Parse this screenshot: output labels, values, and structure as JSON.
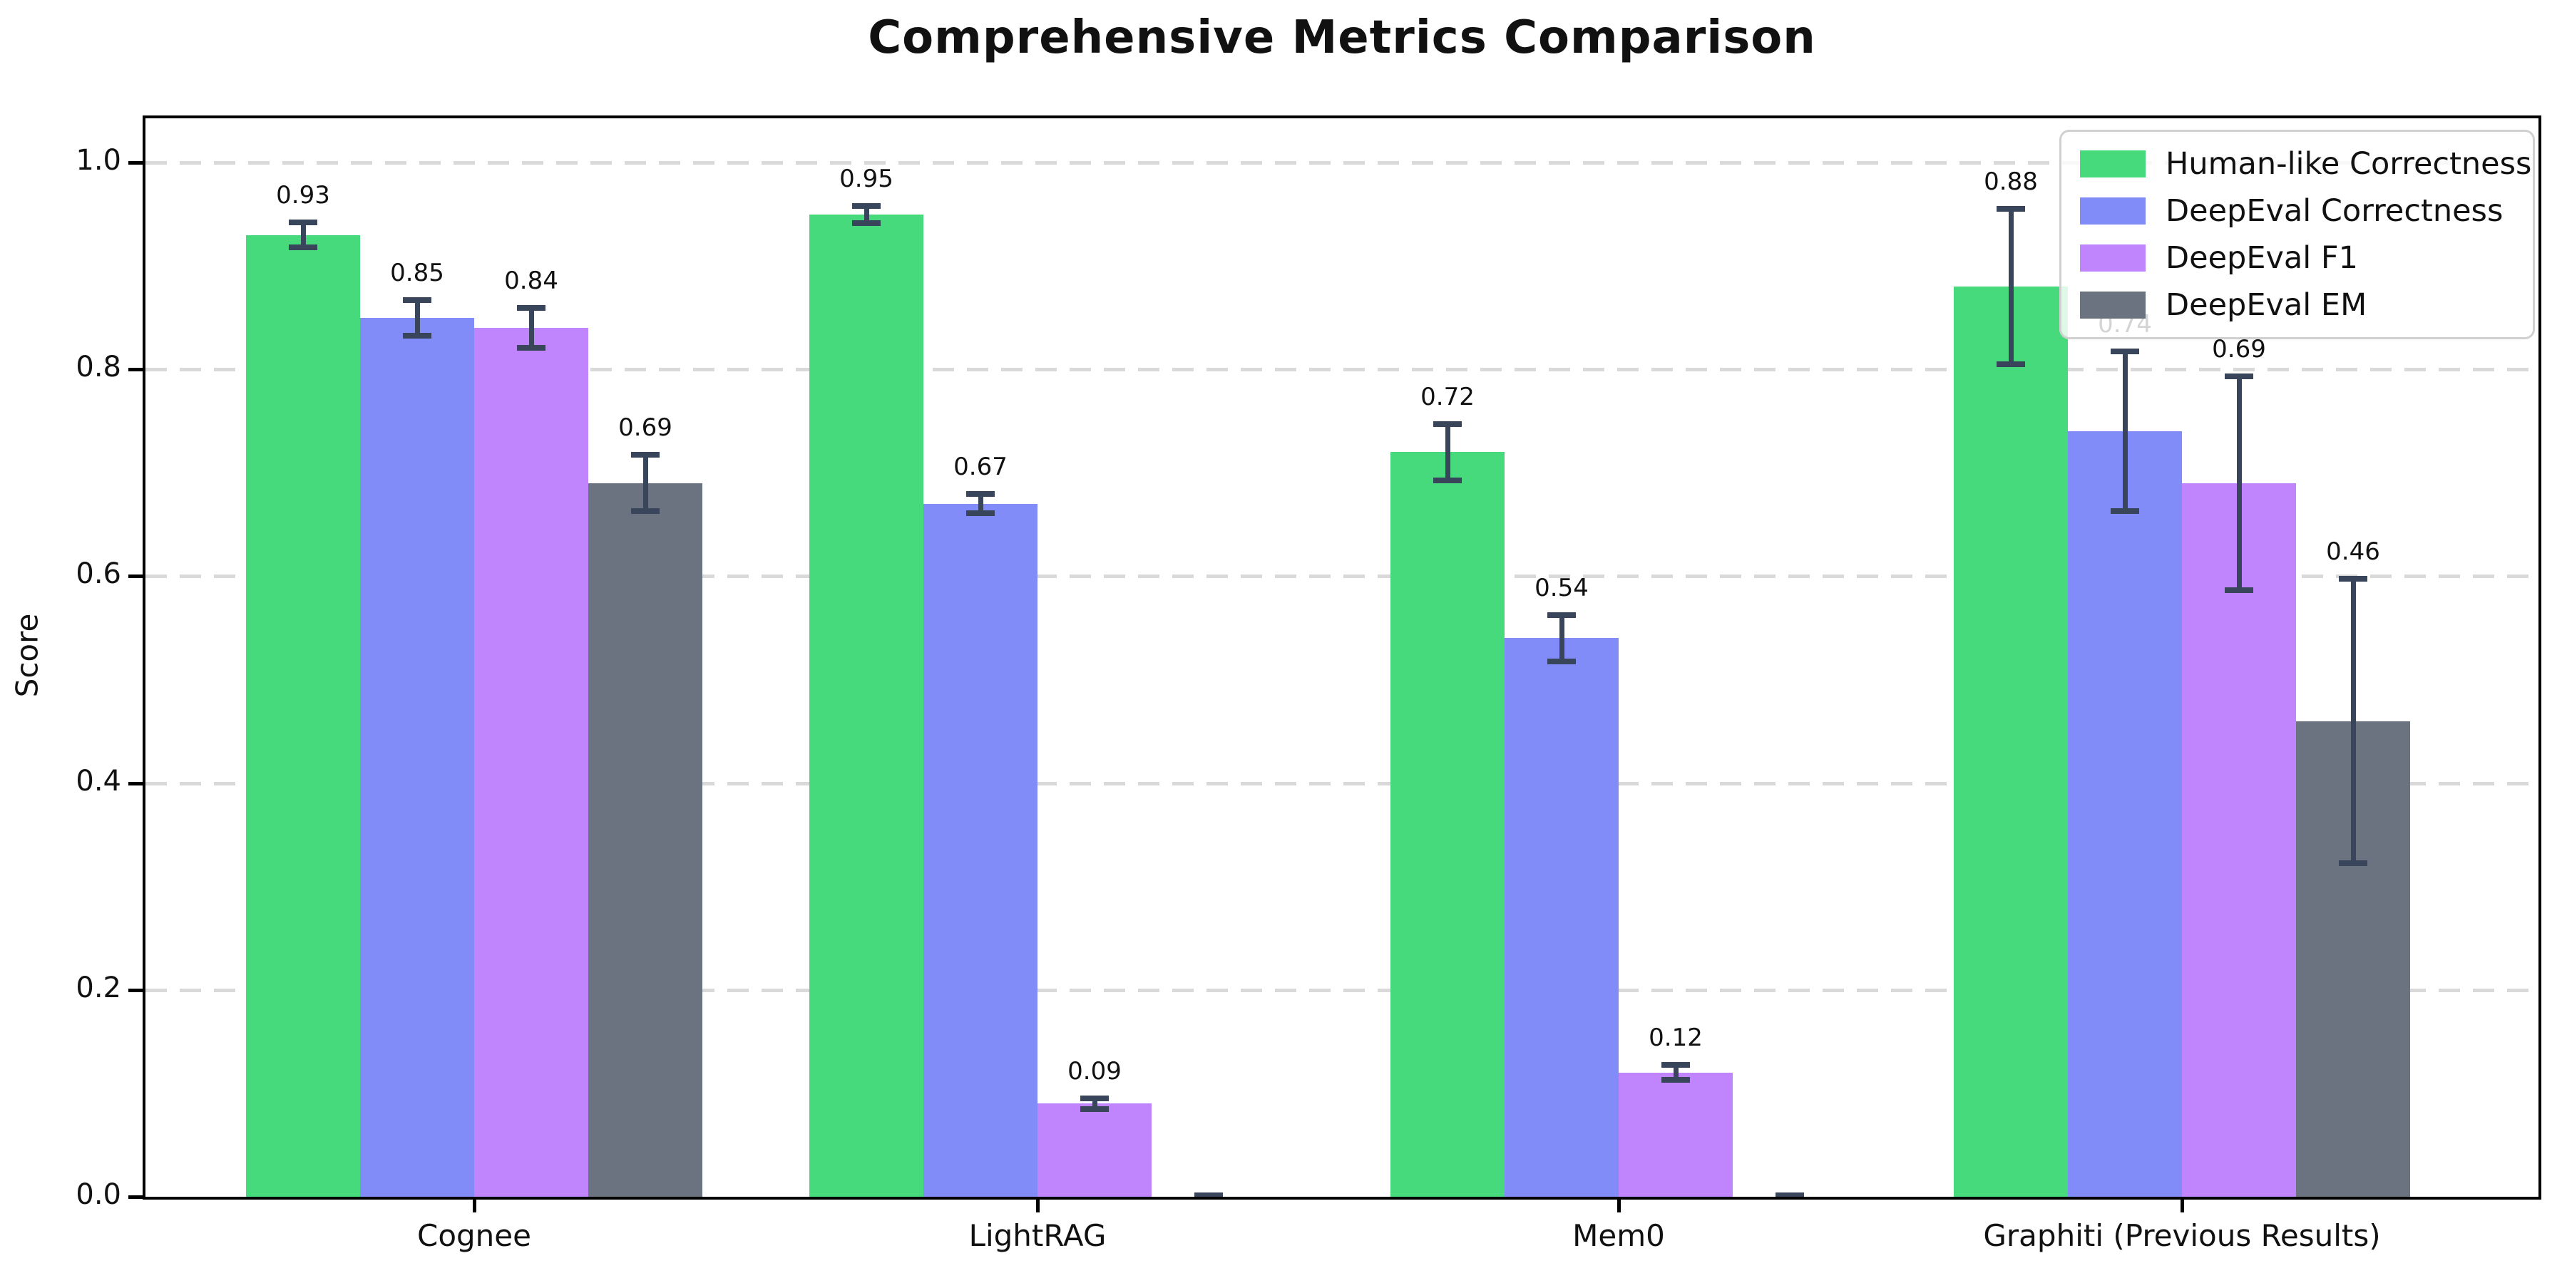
{
  "chart_data": {
    "type": "bar",
    "title": "Comprehensive Metrics Comparison",
    "xlabel": "",
    "ylabel": "Score",
    "categories": [
      "Cognee",
      "LightRAG",
      "Mem0",
      "Graphiti (Previous Results)"
    ],
    "series": [
      {
        "name": "Human-like Correctness",
        "color": "#47da7d",
        "values": [
          0.93,
          0.95,
          0.72,
          0.88
        ],
        "errors": [
          0.015,
          0.011,
          0.03,
          0.078
        ],
        "labels": [
          "0.93",
          "0.95",
          "0.72",
          "0.88"
        ]
      },
      {
        "name": "DeepEval Correctness",
        "color": "#818cf8",
        "values": [
          0.85,
          0.67,
          0.54,
          0.74
        ],
        "errors": [
          0.02,
          0.012,
          0.025,
          0.08
        ],
        "labels": [
          "0.85",
          "0.67",
          "0.54",
          "0.74"
        ]
      },
      {
        "name": "DeepEval F1",
        "color": "#c084fc",
        "values": [
          0.84,
          0.09,
          0.12,
          0.69
        ],
        "errors": [
          0.022,
          0.008,
          0.01,
          0.106
        ],
        "labels": [
          "0.84",
          "0.09",
          "0.12",
          "0.69"
        ]
      },
      {
        "name": "DeepEval EM",
        "color": "#6b7280",
        "values": [
          0.69,
          0.0,
          0.0,
          0.46
        ],
        "errors": [
          0.03,
          0.004,
          0.004,
          0.14
        ],
        "labels": [
          "0.69",
          null,
          null,
          "0.46"
        ]
      }
    ],
    "legend": {
      "position": "upper-right",
      "entries": [
        "Human-like Correctness",
        "DeepEval Correctness",
        "DeepEval F1",
        "DeepEval EM"
      ]
    },
    "y_ticks": [
      {
        "value": 0.0,
        "label": "0.0"
      },
      {
        "value": 0.2,
        "label": "0.2"
      },
      {
        "value": 0.4,
        "label": "0.4"
      },
      {
        "value": 0.6,
        "label": "0.6"
      },
      {
        "value": 0.8,
        "label": "0.8"
      },
      {
        "value": 1.0,
        "label": "1.0"
      }
    ],
    "ylim": [
      0,
      1.043
    ],
    "grid": {
      "axis": "y",
      "style": "dashed",
      "color": "#d9d9d9"
    },
    "error_bar_color": "#39455a",
    "axis_color": "#000000"
  }
}
